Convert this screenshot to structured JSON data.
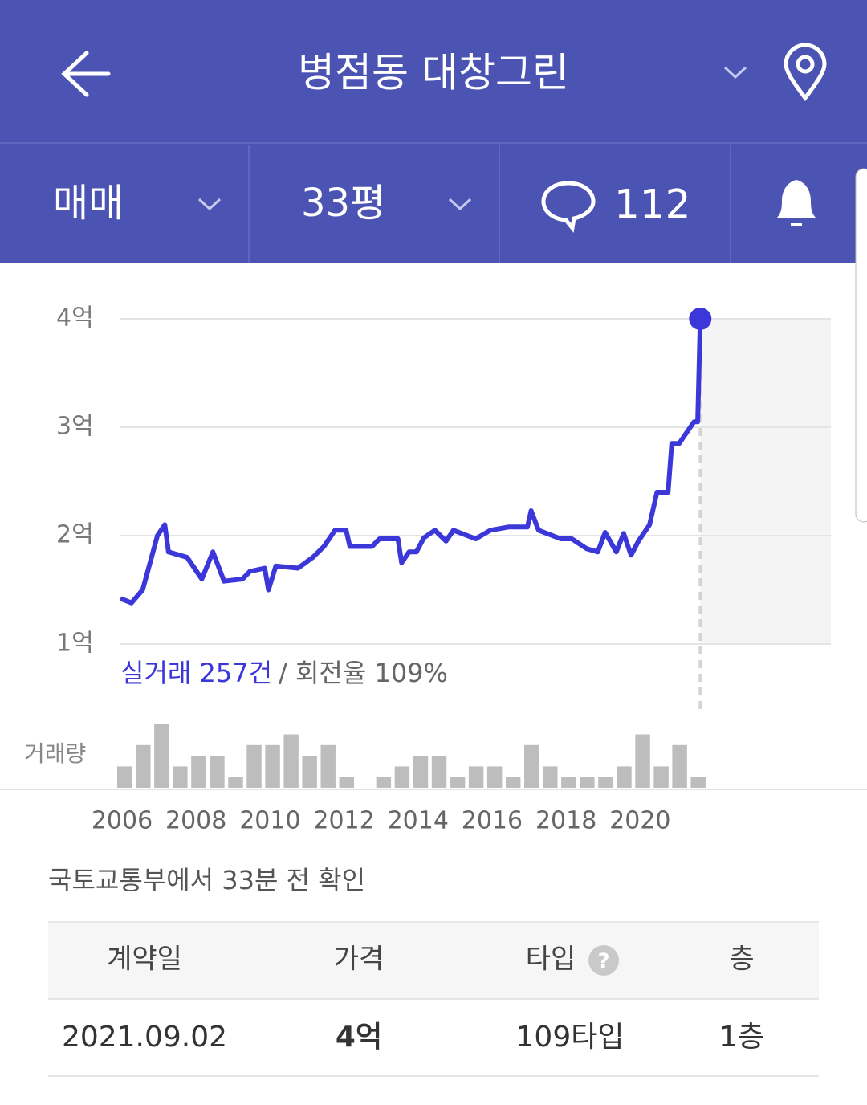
{
  "header": {
    "title": "병점동 대창그린"
  },
  "filters": {
    "deal_type": "매매",
    "size": "33평",
    "comments": "112"
  },
  "chart_data": {
    "type": "line",
    "ylim": [
      1,
      4
    ],
    "yticks": [
      {
        "value": 1,
        "label": "1억"
      },
      {
        "value": 2,
        "label": "2억"
      },
      {
        "value": 3,
        "label": "3억"
      },
      {
        "value": 4,
        "label": "4억"
      }
    ],
    "xlim": [
      2006,
      2025.2
    ],
    "xticks": [
      2006,
      2008,
      2010,
      2012,
      2014,
      2016,
      2018,
      2020
    ],
    "series": [
      {
        "color": "#3b37d9",
        "x": [
          2006.0,
          2006.3,
          2006.6,
          2006.8,
          2007.0,
          2007.2,
          2007.3,
          2007.8,
          2008.2,
          2008.5,
          2008.8,
          2009.3,
          2009.5,
          2009.9,
          2010.0,
          2010.2,
          2010.8,
          2011.2,
          2011.5,
          2011.8,
          2012.1,
          2012.2,
          2012.8,
          2013.0,
          2013.5,
          2013.6,
          2013.8,
          2014.0,
          2014.2,
          2014.5,
          2014.8,
          2015.0,
          2015.6,
          2016.0,
          2016.5,
          2017.0,
          2017.1,
          2017.3,
          2017.9,
          2018.2,
          2018.6,
          2018.9,
          2019.1,
          2019.4,
          2019.6,
          2019.8,
          2020.0,
          2020.3,
          2020.5,
          2020.8,
          2020.9,
          2021.1,
          2021.3,
          2021.5,
          2021.6,
          2021.67
        ],
        "values": [
          1.42,
          1.38,
          1.5,
          1.75,
          2.0,
          2.1,
          1.85,
          1.8,
          1.6,
          1.85,
          1.58,
          1.6,
          1.67,
          1.7,
          1.5,
          1.72,
          1.7,
          1.8,
          1.9,
          2.05,
          2.05,
          1.9,
          1.9,
          1.97,
          1.97,
          1.75,
          1.85,
          1.85,
          1.98,
          2.05,
          1.95,
          2.05,
          1.97,
          2.05,
          2.08,
          2.08,
          2.23,
          2.05,
          1.97,
          1.97,
          1.88,
          1.85,
          2.03,
          1.85,
          2.02,
          1.82,
          1.95,
          2.1,
          2.4,
          2.4,
          2.85,
          2.85,
          2.95,
          3.05,
          3.05,
          4.0
        ]
      }
    ],
    "summary": "실거래 257건",
    "turnover": "/ 회전율 109%",
    "volume": {
      "label": "거래량",
      "color": "#bdbdbd",
      "x": [
        2006.0,
        2006.5,
        2007.0,
        2007.5,
        2008.0,
        2008.5,
        2009.0,
        2009.5,
        2010.0,
        2010.5,
        2011.0,
        2011.5,
        2012.0,
        2012.5,
        2013.0,
        2013.5,
        2014.0,
        2014.5,
        2015.0,
        2015.5,
        2016.0,
        2016.5,
        2017.0,
        2017.5,
        2018.0,
        2018.5,
        2019.0,
        2019.5,
        2020.0,
        2020.5,
        2021.0,
        2021.5
      ],
      "values": [
        2,
        4,
        6,
        2,
        3,
        3,
        1,
        4,
        4,
        5,
        3,
        4,
        1,
        0,
        1,
        2,
        3,
        3,
        1,
        2,
        2,
        1,
        4,
        2,
        1,
        1,
        1,
        2,
        5,
        2,
        4,
        1
      ]
    }
  },
  "source_note": "국토교통부에서 33분 전 확인",
  "table": {
    "columns": [
      "계약일",
      "가격",
      "타입",
      "층"
    ],
    "rows": [
      [
        "2021.09.02",
        "4억",
        "109타입",
        "1층"
      ]
    ]
  }
}
